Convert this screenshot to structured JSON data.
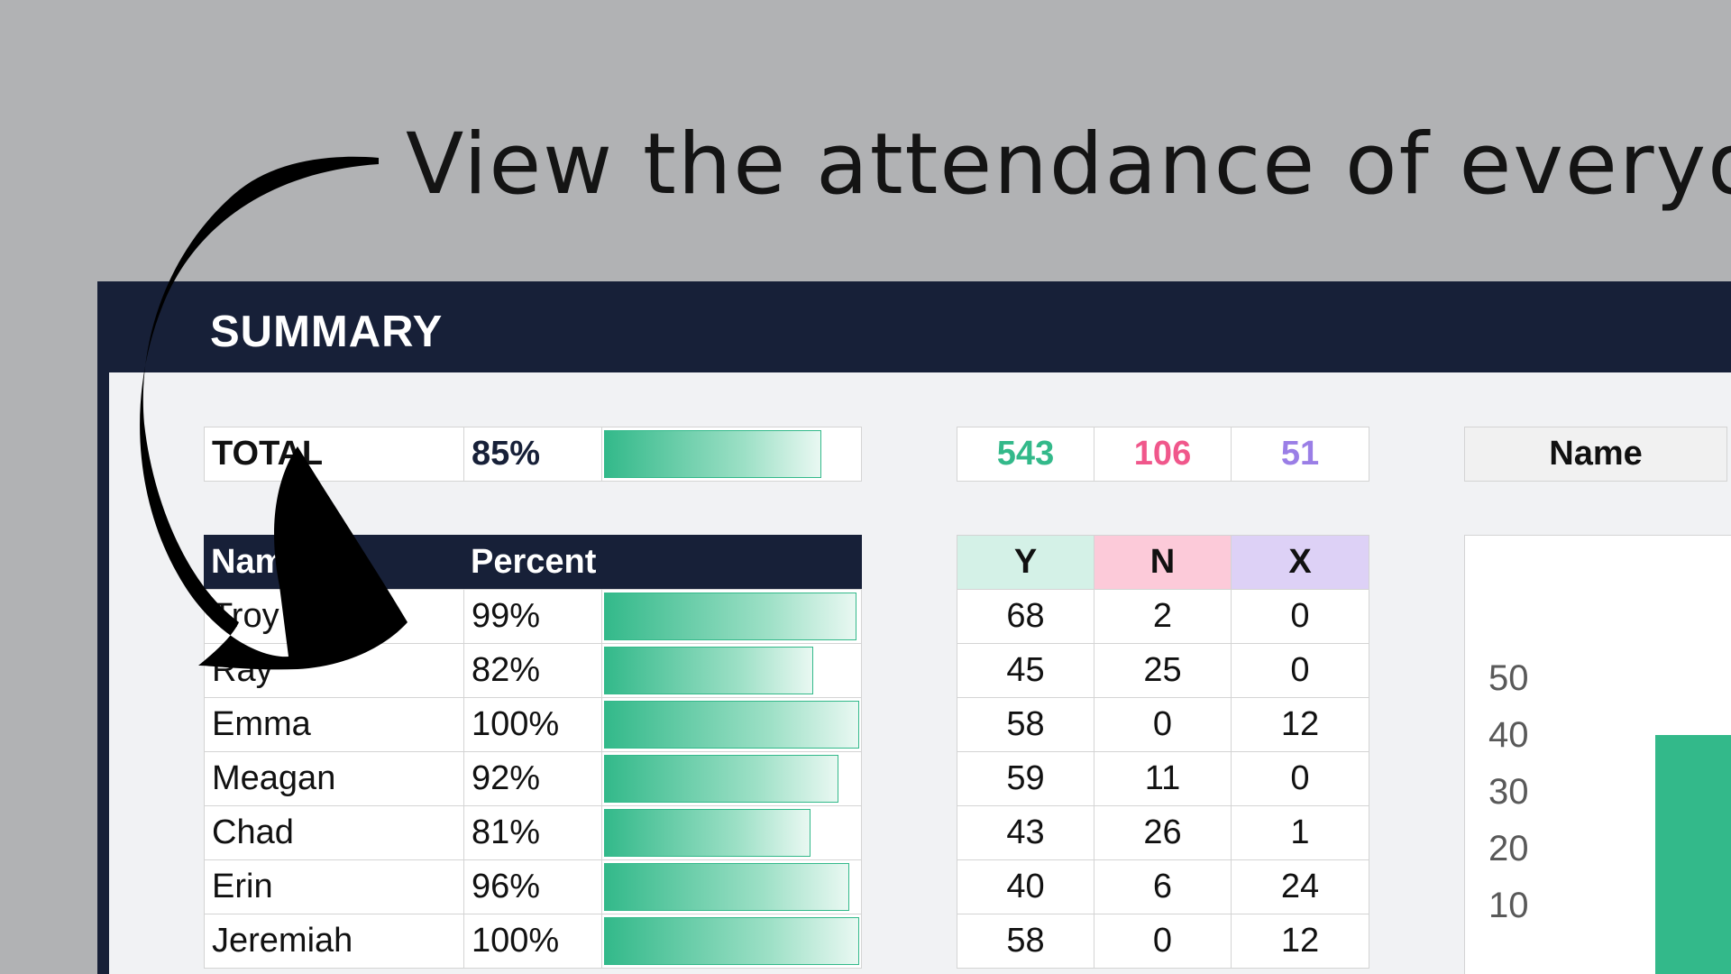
{
  "caption": "View the attendance of everyone!",
  "summary": {
    "title": "SUMMARY",
    "total_label": "TOTAL",
    "total_percent": "85%",
    "total_fraction": 0.85,
    "counts": {
      "y": "543",
      "n": "106",
      "x": "51"
    },
    "name_header": "Name",
    "percent_header": "Percent",
    "col_y": "Y",
    "col_n": "N",
    "col_x": "X",
    "colors": {
      "y": "#33b98a",
      "n": "#f0578b",
      "x": "#9a7ee6"
    }
  },
  "rows": [
    {
      "name": "Troy",
      "percent": "99%",
      "fraction": 0.99,
      "y": "68",
      "n": "2",
      "x": "0"
    },
    {
      "name": "Ray",
      "percent": "82%",
      "fraction": 0.82,
      "y": "45",
      "n": "25",
      "x": "0"
    },
    {
      "name": "Emma",
      "percent": "100%",
      "fraction": 1.0,
      "y": "58",
      "n": "0",
      "x": "12"
    },
    {
      "name": "Meagan",
      "percent": "92%",
      "fraction": 0.92,
      "y": "59",
      "n": "11",
      "x": "0"
    },
    {
      "name": "Chad",
      "percent": "81%",
      "fraction": 0.81,
      "y": "43",
      "n": "26",
      "x": "1"
    },
    {
      "name": "Erin",
      "percent": "96%",
      "fraction": 0.96,
      "y": "40",
      "n": "6",
      "x": "24"
    },
    {
      "name": "Jeremiah",
      "percent": "100%",
      "fraction": 1.0,
      "y": "58",
      "n": "0",
      "x": "12"
    }
  ],
  "chart": {
    "y_ticks": [
      "50",
      "40",
      "30",
      "20",
      "10"
    ],
    "bar_value": 40,
    "y_max": 60
  }
}
